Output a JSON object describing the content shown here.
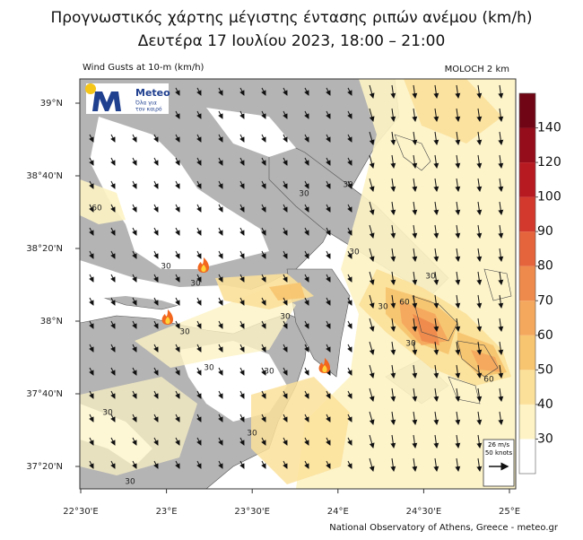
{
  "title": "Προγνωστικός χάρτης μέγιστης έντασης ριπών ανέμου (km/h)",
  "subtitle": "Δευτέρα 17 Ιουλίου 2023, 18:00 – 21:00",
  "map": {
    "label_left": "Wind Gusts at 10-m (km/h)",
    "label_right": "MOLOCH 2 km",
    "lat_ticks": [
      "39°N",
      "38°40'N",
      "38°20'N",
      "38°N",
      "37°40'N",
      "37°20'N"
    ],
    "lon_ticks": [
      "22°30'E",
      "23°E",
      "23°30'E",
      "24°E",
      "24°30'E",
      "25°E"
    ],
    "contour_labels": [
      "30",
      "30",
      "60",
      "30",
      "30",
      "30",
      "30",
      "30",
      "30",
      "30",
      "30",
      "60",
      "30",
      "60",
      "30",
      "30",
      "30",
      "30"
    ],
    "reference": [
      "26 m/s",
      "50 knots"
    ]
  },
  "logo": {
    "name": "Meteo",
    "tagline": [
      "Όλα για",
      "τον καιρό"
    ]
  },
  "colorbar": {
    "ticks": [
      30,
      40,
      50,
      60,
      70,
      80,
      90,
      100,
      120,
      140
    ],
    "colors": [
      "#ffffff",
      "#fdf3c4",
      "#fbe09a",
      "#f7c46f",
      "#f4a85e",
      "#ee8a4c",
      "#e5643b",
      "#d33a2d",
      "#b81a22",
      "#950d1b",
      "#700615"
    ]
  },
  "footer": "National Observatory of Athens, Greece - meteo.gr"
}
